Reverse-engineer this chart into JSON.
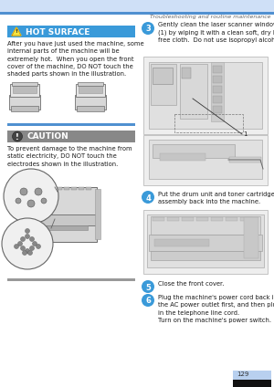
{
  "bg_color": "#f5f5f5",
  "page_bg": "#ffffff",
  "header_bar_light": "#cfe0f7",
  "header_bar_blue": "#5090d0",
  "header_text": "Troubleshooting and routine maintenance",
  "hot_surface_bg": "#3a9ad9",
  "hot_surface_text": "HOT SURFACE",
  "caution_bg": "#888888",
  "caution_text": "CAUTION",
  "divider_blue": "#5090d0",
  "divider_gray": "#999999",
  "page_num": "129",
  "page_num_bg": "#b8d0ef",
  "page_num_bar_bg": "#111111",
  "body_text_color": "#1a1a1a",
  "gray_text_color": "#666666",
  "step_circle_color": "#3a9ad9",
  "step_text_color": "#ffffff",
  "illus_stroke": "#555555",
  "illus_fill_light": "#e8e8e8",
  "illus_fill_mid": "#cccccc",
  "illus_fill_dark": "#aaaaaa"
}
